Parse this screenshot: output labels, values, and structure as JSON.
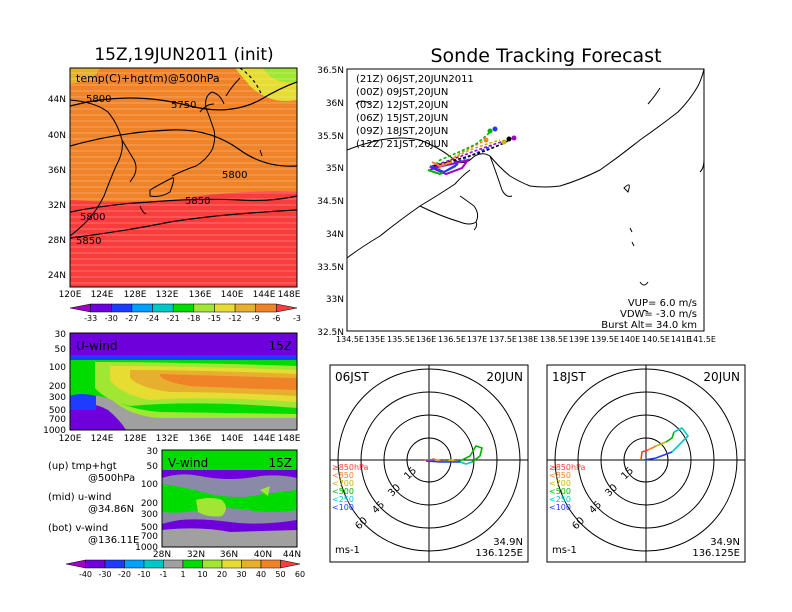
{
  "left_title": "15Z,19JUN2011 (init)",
  "right_title": "Sonde Tracking Forecast",
  "temp_panel": {
    "label": "temp(C)+hgt(m)@500hPa",
    "contours": [
      "5800",
      "5750",
      "5800",
      "5850",
      "5800",
      "5850"
    ],
    "lat_labels": [
      "44N",
      "40N",
      "36N",
      "32N",
      "28N",
      "24N"
    ],
    "lon_labels": [
      "120E",
      "124E",
      "128E",
      "132E",
      "136E",
      "140E",
      "144E",
      "148E"
    ],
    "colorbar_labels": [
      "-33",
      "-30",
      "-27",
      "-24",
      "-21",
      "-18",
      "-15",
      "-12",
      "-9",
      "-6",
      "-3"
    ],
    "colors": [
      "#a000c8",
      "#6e00dc",
      "#1e3cff",
      "#00a0ff",
      "#00c8c8",
      "#00dc00",
      "#a0e632",
      "#e6dc32",
      "#e6af2d",
      "#f08228",
      "#fa3c3c"
    ]
  },
  "uwind_panel": {
    "label": "U-wind",
    "time": "15Z",
    "p_labels": [
      "30",
      "50",
      "100",
      "200",
      "300",
      "500",
      "700",
      "1000"
    ],
    "lon_labels": [
      "120E",
      "124E",
      "128E",
      "132E",
      "136E",
      "140E",
      "144E",
      "148E"
    ]
  },
  "vwind_panel": {
    "label": "V-wind",
    "time": "15Z",
    "p_labels": [
      "30",
      "50",
      "100",
      "200",
      "300",
      "500",
      "700",
      "1000"
    ],
    "lat_labels": [
      "28N",
      "32N",
      "36N",
      "40N",
      "44N"
    ]
  },
  "legend_notes": [
    {
      "a": "(up) tmp+hgt",
      "b": "@500hPa"
    },
    {
      "a": "(mid) u-wind",
      "b": "@34.86N"
    },
    {
      "a": "(bot) v-wind",
      "b": "@136.11E"
    }
  ],
  "wind_colorbar": {
    "labels": [
      "-40",
      "-30",
      "-20",
      "-10",
      "-1",
      "1",
      "10",
      "20",
      "30",
      "40",
      "50",
      "60"
    ],
    "colors": [
      "#a000c8",
      "#6e00dc",
      "#1e3cff",
      "#00a0ff",
      "#00c8c8",
      "#a0a0a0",
      "#00dc00",
      "#a0e632",
      "#e6dc32",
      "#e6af2d",
      "#f08228",
      "#fa3c3c"
    ]
  },
  "track_map": {
    "lat_labels": [
      "36.5N",
      "36N",
      "35.5N",
      "35N",
      "34.5N",
      "34N",
      "33.5N",
      "33N",
      "32.5N"
    ],
    "lon_labels": [
      "134.5E",
      "135E",
      "135.5E",
      "136E",
      "136.5E",
      "137E",
      "137.5E",
      "138E",
      "138.5E",
      "139E",
      "139.5E",
      "140E",
      "140.5E",
      "141E",
      "141.5E"
    ],
    "legend": [
      {
        "text": "(21Z)  06JST,20JUN2011",
        "color": "#000000"
      },
      {
        "text": "(00Z)  09JST,20JUN",
        "color": "#a000c8"
      },
      {
        "text": "(03Z)  12JST,20JUN",
        "color": "#1e3cff"
      },
      {
        "text": "(06Z)  15JST,20JUN",
        "color": "#00b400"
      },
      {
        "text": "(09Z)  18JST,20JUN",
        "color": "#c8b400"
      },
      {
        "text": "(12Z)  21JST,20JUN",
        "color": "#f08228"
      }
    ],
    "params": [
      "VUP=  6.0  m/s",
      "VDW= -3.0  m/s",
      "Burst Alt=  34.0  km"
    ]
  },
  "hodo_left": {
    "time": "06JST",
    "date": "20JUN",
    "ring_labels": [
      "15",
      "30",
      "45",
      "60"
    ],
    "unit": "ms-1",
    "lat": "34.9N",
    "lon": "136.125E",
    "levels": [
      {
        "text": "≥850hPa",
        "color": "#fa3c3c"
      },
      {
        "text": "<850",
        "color": "#f08228"
      },
      {
        "text": "<700",
        "color": "#c8b400"
      },
      {
        "text": "<500",
        "color": "#00b400"
      },
      {
        "text": "<250",
        "color": "#00c8c8"
      },
      {
        "text": "<100",
        "color": "#1e3cff"
      }
    ]
  },
  "hodo_right": {
    "time": "18JST",
    "date": "20JUN",
    "ring_labels": [
      "15",
      "30",
      "45",
      "60"
    ],
    "unit": "ms-1",
    "lat": "34.9N",
    "lon": "136.125E",
    "levels": [
      {
        "text": "≥850hPa",
        "color": "#fa3c3c"
      },
      {
        "text": "<850",
        "color": "#f08228"
      },
      {
        "text": "<700",
        "color": "#c8b400"
      },
      {
        "text": "<500",
        "color": "#00b400"
      },
      {
        "text": "<250",
        "color": "#00c8c8"
      },
      {
        "text": "<100",
        "color": "#1e3cff"
      }
    ]
  }
}
